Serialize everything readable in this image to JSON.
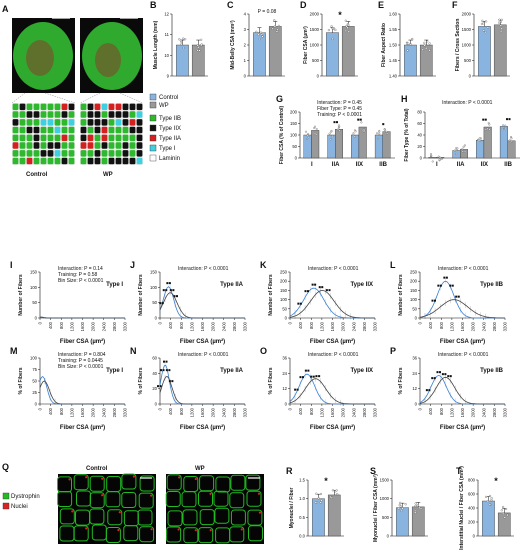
{
  "panels": {
    "A": {
      "letter": "A",
      "groups": [
        "Control",
        "WP"
      ],
      "legend": [
        {
          "label": "Type IIB",
          "color": "#2db82d"
        },
        {
          "label": "Type IIX",
          "color": "#111111"
        },
        {
          "label": "Type IIA",
          "color": "#d42020"
        },
        {
          "label": "Type I",
          "color": "#3fd0e0"
        },
        {
          "label": "Laminin",
          "color": "#ffffff"
        }
      ]
    },
    "B": {
      "letter": "B",
      "ylabel": "Muscle Length (mm)",
      "ticks": [
        "9",
        "10",
        "11",
        "12"
      ],
      "values": {
        "Control": 10.5,
        "WP": 10.5
      }
    },
    "C": {
      "letter": "C",
      "ylabel": "Mid-Belly CSA (mm²)",
      "ticks": [
        "0",
        "1",
        "2",
        "3",
        "4"
      ],
      "annotation": "P = 0.08",
      "values": {
        "Control": 2.8,
        "WP": 3.2
      }
    },
    "D": {
      "letter": "D",
      "ylabel": "Fiber CSA (µm²)",
      "ticks": [
        "0",
        "500",
        "1000",
        "1500",
        "2000"
      ],
      "annotation": "*",
      "values": {
        "Control": 1400,
        "WP": 1600
      }
    },
    "E": {
      "letter": "E",
      "ylabel": "Fiber Aspect Ratio",
      "ticks": [
        "1.40",
        "1.45",
        "1.50",
        "1.55",
        "1.60"
      ],
      "values": {
        "Control": 1.5,
        "WP": 1.5
      }
    },
    "F": {
      "letter": "F",
      "ylabel": "Fibers / Cross Section",
      "ticks": [
        "0",
        "500",
        "1000",
        "1500",
        "2000"
      ],
      "values": {
        "Control": 1600,
        "WP": 1650
      }
    },
    "legendBF": [
      {
        "label": "Control",
        "color": "#8ab4e0"
      },
      {
        "label": "WP",
        "color": "#999999"
      }
    ],
    "G": {
      "letter": "G",
      "ylabel": "Fiber CSA (% of Control)",
      "ticks": [
        "0",
        "50",
        "100",
        "150",
        "200"
      ],
      "stats": [
        "Interaction: P = 0.45",
        "Fiber Type: P = 0.45",
        "Training: P < 0.0001"
      ],
      "categories": [
        "I",
        "IIA",
        "IIX",
        "IIB"
      ],
      "control": [
        100,
        100,
        100,
        100
      ],
      "wp": [
        120,
        125,
        135,
        115
      ],
      "marks": [
        "",
        "■■",
        "■■",
        "■"
      ]
    },
    "H": {
      "letter": "H",
      "ylabel": "Fiber Type (% of Total)",
      "ticks": [
        "0",
        "20",
        "40",
        "60",
        "80"
      ],
      "stats": [
        "Interaction: P < 0.0001"
      ],
      "categories": [
        "I",
        "IIA",
        "IIX",
        "IIB"
      ],
      "control": [
        1,
        13,
        31,
        55
      ],
      "wp": [
        1,
        15,
        54,
        30
      ],
      "marks": [
        "",
        "",
        "■■",
        "■■"
      ]
    },
    "I": {
      "letter": "I",
      "ylabel": "Number of Fibers",
      "xlabel": "Fiber CSA (µm²)",
      "label": "Type I",
      "ticks": [
        "0",
        "50",
        "100",
        "150"
      ],
      "stats": [
        "Interaction: P = 0.14",
        "Training: P = 0.58",
        "Bin Size: P < 0.0001"
      ],
      "peak": 0
    },
    "J": {
      "letter": "J",
      "ylabel": "Number of Fibers",
      "xlabel": "Fiber CSA (µm²)",
      "label": "Type IIA",
      "ticks": [
        "0",
        "50",
        "100",
        "150"
      ],
      "stats": [
        "Interaction: P < 0.0001"
      ],
      "peak": 110
    },
    "K": {
      "letter": "K",
      "ylabel": "Number of Fibers",
      "xlabel": "Fiber CSA (µm²)",
      "label": "Type IIX",
      "ticks": [
        "0",
        "50",
        "100",
        "150",
        "200",
        "250"
      ],
      "stats": [
        "Interaction: P < 0.0001"
      ],
      "peak": 200
    },
    "L": {
      "letter": "L",
      "ylabel": "Number of Fibers",
      "xlabel": "Fiber CSA (µm²)",
      "label": "Type IIB",
      "ticks": [
        "0",
        "50",
        "100",
        "150",
        "200",
        "250"
      ],
      "stats": [
        "Interaction: P < 0.0001"
      ],
      "peak": 200
    },
    "M": {
      "letter": "M",
      "ylabel": "% of Fibers",
      "xlabel": "Fiber CSA (µm²)",
      "label": "Type I",
      "ticks": [
        "0",
        "25",
        "50",
        "75",
        "100"
      ],
      "stats": [
        "Interaction: P = 0.804",
        "Training: P = 0.0445",
        "Bin Size: P < 0.0001"
      ]
    },
    "N": {
      "letter": "N",
      "ylabel": "% of Fibers",
      "xlabel": "Fiber CSA (µm²)",
      "label": "Type IIA",
      "ticks": [
        "0",
        "20",
        "40",
        "60"
      ],
      "stats": [
        "Interaction: P < 0.0001"
      ]
    },
    "O": {
      "letter": "O",
      "ylabel": "% of Fibers",
      "xlabel": "Fiber CSA (µm²)",
      "label": "Type IIX",
      "ticks": [
        "0",
        "12",
        "24",
        "36"
      ],
      "stats": [
        "Interaction: P < 0.0001"
      ]
    },
    "P": {
      "letter": "P",
      "ylabel": "% of Fibers",
      "xlabel": "Fiber CSA (µm²)",
      "label": "Type IIB",
      "ticks": [
        "0",
        "12",
        "24",
        "36"
      ],
      "stats": [
        "Interaction: P < 0.0001"
      ]
    },
    "xticks": [
      "0",
      "400",
      "800",
      "1200",
      "1600",
      "2000",
      "2400",
      "2800",
      "3200"
    ],
    "Q": {
      "letter": "Q",
      "groups": [
        "Control",
        "WP"
      ],
      "legend": [
        {
          "label": "Dystrophin",
          "color": "#22bb22"
        },
        {
          "label": "Nuclei",
          "color": "#dd2222"
        }
      ]
    },
    "R": {
      "letter": "R",
      "ylabel": "Myonuclei / Fiber",
      "ticks": [
        "0.0",
        "0.5",
        "1.0",
        "1.5"
      ],
      "annotation": "*",
      "values": {
        "Control": 1.0,
        "WP": 1.1
      }
    },
    "S": {
      "letter": "S",
      "ylabel": "Myonuclei / Fiber CSA (mm²)",
      "ticks": [
        "0",
        "500",
        "1000",
        "1500"
      ],
      "values": {
        "Control": 760,
        "WP": 780
      }
    },
    "T": {
      "letter": "T",
      "ylabel": "Interstitial Nuclei / Fiber CSA (mm²)",
      "ticks": [
        "0",
        "200",
        "400",
        "600",
        "800"
      ],
      "annotation": "*",
      "values": {
        "Control": 500,
        "WP": 330
      }
    }
  },
  "colors": {
    "control": "#8ab4e0",
    "wp": "#999999",
    "controlLine": "#3a7fd0",
    "wpLine": "#444444"
  }
}
